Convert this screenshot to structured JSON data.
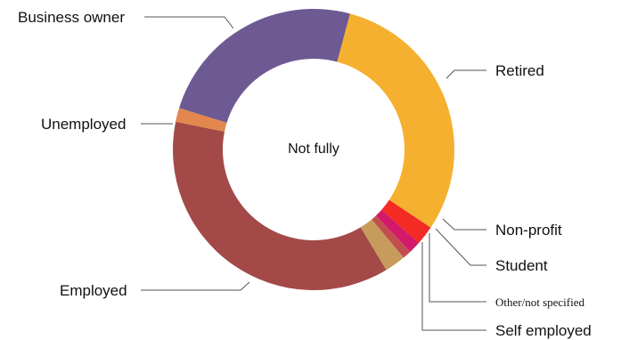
{
  "chart_data": {
    "type": "pie",
    "center_label": "Not fully",
    "categories": [
      "Retired",
      "Non-profit",
      "Student",
      "Other/not specified",
      "Self employed",
      "Employed",
      "Unemployed",
      "Business owner"
    ],
    "values": [
      30.2,
      2.2,
      1.4,
      1.0,
      2.4,
      36.8,
      1.6,
      24.4
    ],
    "colors": [
      "#F5B02F",
      "#F42A24",
      "#D2196A",
      "#C24F50",
      "#C79B5B",
      "#A34A48",
      "#E3874E",
      "#6E5A92"
    ]
  }
}
